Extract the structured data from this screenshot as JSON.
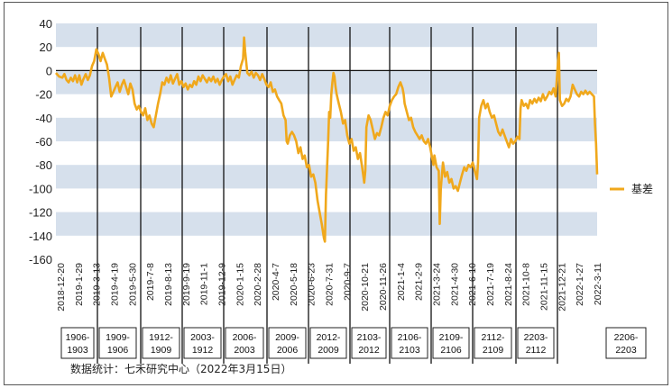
{
  "chart_data": {
    "type": "line",
    "title": "",
    "xlabel": "",
    "ylabel": "",
    "ylim": [
      -160,
      40
    ],
    "yticks": [
      40,
      20,
      0,
      -20,
      -40,
      -60,
      -80,
      -100,
      -120,
      -140,
      -160
    ],
    "ytick_labels": [
      "40",
      "20",
      "0",
      "-20",
      "-40",
      "-60",
      "-80",
      "-100",
      "-120",
      "-140",
      "-160"
    ],
    "x_tick_labels": [
      "2018-12-20",
      "2019-1-29",
      "2019-3-13",
      "2019-4-19",
      "2019-5-30",
      "2019-7-8",
      "2019-8-13",
      "2019-9-19",
      "2019-11-1",
      "2019-12-9",
      "2020-1-15",
      "2020-2-28",
      "2020-4-7",
      "2020-5-18",
      "2020-6-23",
      "2020-7-31",
      "2020-9-7",
      "2020-10-21",
      "2020-11-26",
      "2021-1-4",
      "2021-2-9",
      "2021-3-24",
      "2021-4-30",
      "2021-6-10",
      "2021-7-19",
      "2021-8-24",
      "2021-10-8",
      "2021-11-15",
      "2021-12-21",
      "2022-1-27",
      "2022-3-11"
    ],
    "contract_labels": [
      {
        "line1": "1906-",
        "line2": "1903"
      },
      {
        "line1": "1909-",
        "line2": "1906"
      },
      {
        "line1": "1912-",
        "line2": "1909"
      },
      {
        "line1": "2003-",
        "line2": "1912"
      },
      {
        "line1": "2006-",
        "line2": "2003"
      },
      {
        "line1": "2009-",
        "line2": "2006"
      },
      {
        "line1": "2012-",
        "line2": "2009"
      },
      {
        "line1": "2103-",
        "line2": "2012"
      },
      {
        "line1": "2106-",
        "line2": "2103"
      },
      {
        "line1": "2109-",
        "line2": "2106"
      },
      {
        "line1": "2112-",
        "line2": "2109"
      },
      {
        "line1": "2203-",
        "line2": "2112"
      },
      {
        "line1": "2206-",
        "line2": "2203"
      }
    ],
    "series": [
      {
        "name": "基差",
        "color": "#f0a81c",
        "values": [
          [
            0,
            -2
          ],
          [
            3,
            -5
          ],
          [
            6,
            -6
          ],
          [
            8,
            -3
          ],
          [
            10,
            -8
          ],
          [
            12,
            -10
          ],
          [
            14,
            -6
          ],
          [
            16,
            -9
          ],
          [
            18,
            -4
          ],
          [
            20,
            -10
          ],
          [
            22,
            -4
          ],
          [
            24,
            -12
          ],
          [
            26,
            -7
          ],
          [
            28,
            -3
          ],
          [
            30,
            -8
          ],
          [
            32,
            -4
          ],
          [
            34,
            4
          ],
          [
            36,
            8
          ],
          [
            38,
            18
          ],
          [
            40,
            14
          ],
          [
            42,
            8
          ],
          [
            44,
            15
          ],
          [
            46,
            10
          ],
          [
            48,
            5
          ],
          [
            50,
            -6
          ],
          [
            52,
            -22
          ],
          [
            54,
            -18
          ],
          [
            56,
            -14
          ],
          [
            58,
            -10
          ],
          [
            60,
            -18
          ],
          [
            62,
            -12
          ],
          [
            64,
            -8
          ],
          [
            66,
            -14
          ],
          [
            68,
            -20
          ],
          [
            70,
            -11
          ],
          [
            72,
            -16
          ],
          [
            74,
            -28
          ],
          [
            76,
            -33
          ],
          [
            78,
            -30
          ],
          [
            80,
            -35
          ],
          [
            82,
            -38
          ],
          [
            84,
            -32
          ],
          [
            86,
            -42
          ],
          [
            88,
            -38
          ],
          [
            90,
            -45
          ],
          [
            92,
            -48
          ],
          [
            94,
            -38
          ],
          [
            96,
            -28
          ],
          [
            98,
            -20
          ],
          [
            100,
            -10
          ],
          [
            102,
            -12
          ],
          [
            104,
            -6
          ],
          [
            106,
            -10
          ],
          [
            108,
            -4
          ],
          [
            110,
            -11
          ],
          [
            112,
            -7
          ],
          [
            114,
            -3
          ],
          [
            116,
            -12
          ],
          [
            118,
            -9
          ],
          [
            120,
            -14
          ],
          [
            122,
            -11
          ],
          [
            124,
            -16
          ],
          [
            126,
            -12
          ],
          [
            128,
            -14
          ],
          [
            130,
            -9
          ],
          [
            132,
            -12
          ],
          [
            134,
            -5
          ],
          [
            136,
            -9
          ],
          [
            138,
            -4
          ],
          [
            140,
            -7
          ],
          [
            142,
            -10
          ],
          [
            144,
            -6
          ],
          [
            146,
            -9
          ],
          [
            148,
            -5
          ],
          [
            150,
            -10
          ],
          [
            152,
            -7
          ],
          [
            154,
            -12
          ],
          [
            156,
            -8
          ],
          [
            158,
            -5
          ],
          [
            160,
            -3
          ],
          [
            162,
            -9
          ],
          [
            164,
            -5
          ],
          [
            166,
            -12
          ],
          [
            168,
            -8
          ],
          [
            170,
            -4
          ],
          [
            172,
            -6
          ],
          [
            174,
            4
          ],
          [
            176,
            10
          ],
          [
            177,
            28
          ],
          [
            178,
            16
          ],
          [
            180,
            -2
          ],
          [
            182,
            -4
          ],
          [
            184,
            -1
          ],
          [
            186,
            -6
          ],
          [
            188,
            -2
          ],
          [
            190,
            -4
          ],
          [
            192,
            -8
          ],
          [
            194,
            -3
          ],
          [
            196,
            -7
          ],
          [
            198,
            -12
          ],
          [
            200,
            -14
          ],
          [
            202,
            -10
          ],
          [
            204,
            -18
          ],
          [
            206,
            -16
          ],
          [
            208,
            -22
          ],
          [
            210,
            -25
          ],
          [
            212,
            -28
          ],
          [
            214,
            -38
          ],
          [
            216,
            -42
          ],
          [
            217,
            -60
          ],
          [
            218,
            -62
          ],
          [
            220,
            -55
          ],
          [
            222,
            -52
          ],
          [
            224,
            -55
          ],
          [
            226,
            -60
          ],
          [
            228,
            -70
          ],
          [
            230,
            -65
          ],
          [
            232,
            -75
          ],
          [
            234,
            -72
          ],
          [
            236,
            -82
          ],
          [
            238,
            -80
          ],
          [
            240,
            -90
          ],
          [
            242,
            -88
          ],
          [
            244,
            -95
          ],
          [
            246,
            -110
          ],
          [
            248,
            -120
          ],
          [
            250,
            -130
          ],
          [
            252,
            -142
          ],
          [
            253,
            -145
          ],
          [
            254,
            -105
          ],
          [
            256,
            -60
          ],
          [
            257,
            -35
          ],
          [
            258,
            -40
          ],
          [
            259,
            -20
          ],
          [
            260,
            -10
          ],
          [
            261,
            -2
          ],
          [
            262,
            -5
          ],
          [
            263,
            -14
          ],
          [
            264,
            -20
          ],
          [
            266,
            -28
          ],
          [
            268,
            -35
          ],
          [
            270,
            -45
          ],
          [
            272,
            -42
          ],
          [
            274,
            -55
          ],
          [
            276,
            -62
          ],
          [
            278,
            -58
          ],
          [
            280,
            -68
          ],
          [
            282,
            -65
          ],
          [
            284,
            -75
          ],
          [
            286,
            -70
          ],
          [
            288,
            -82
          ],
          [
            290,
            -95
          ],
          [
            291,
            -85
          ],
          [
            292,
            -48
          ],
          [
            294,
            -38
          ],
          [
            296,
            -42
          ],
          [
            298,
            -50
          ],
          [
            300,
            -58
          ],
          [
            302,
            -53
          ],
          [
            304,
            -55
          ],
          [
            306,
            -48
          ],
          [
            308,
            -40
          ],
          [
            310,
            -35
          ],
          [
            312,
            -38
          ],
          [
            314,
            -30
          ],
          [
            316,
            -25
          ],
          [
            318,
            -22
          ],
          [
            320,
            -20
          ],
          [
            322,
            -14
          ],
          [
            324,
            -10
          ],
          [
            326,
            -15
          ],
          [
            327,
            -20
          ],
          [
            328,
            -28
          ],
          [
            330,
            -35
          ],
          [
            332,
            -42
          ],
          [
            334,
            -40
          ],
          [
            336,
            -48
          ],
          [
            338,
            -52
          ],
          [
            340,
            -55
          ],
          [
            342,
            -58
          ],
          [
            344,
            -55
          ],
          [
            346,
            -60
          ],
          [
            348,
            -62
          ],
          [
            350,
            -58
          ],
          [
            352,
            -65
          ],
          [
            354,
            -75
          ],
          [
            355,
            -80
          ],
          [
            356,
            -72
          ],
          [
            358,
            -82
          ],
          [
            360,
            -85
          ],
          [
            361,
            -130
          ],
          [
            362,
            -100
          ],
          [
            364,
            -78
          ],
          [
            366,
            -90
          ],
          [
            368,
            -86
          ],
          [
            370,
            -95
          ],
          [
            372,
            -92
          ],
          [
            374,
            -100
          ],
          [
            376,
            -98
          ],
          [
            378,
            -102
          ],
          [
            380,
            -95
          ],
          [
            382,
            -88
          ],
          [
            384,
            -82
          ],
          [
            386,
            -85
          ],
          [
            388,
            -80
          ],
          [
            390,
            -82
          ],
          [
            392,
            -78
          ],
          [
            394,
            -85
          ],
          [
            396,
            -92
          ],
          [
            397,
            -78
          ],
          [
            398,
            -40
          ],
          [
            400,
            -30
          ],
          [
            402,
            -25
          ],
          [
            404,
            -32
          ],
          [
            406,
            -28
          ],
          [
            408,
            -35
          ],
          [
            410,
            -40
          ],
          [
            412,
            -38
          ],
          [
            414,
            -45
          ],
          [
            416,
            -52
          ],
          [
            418,
            -55
          ],
          [
            420,
            -50
          ],
          [
            422,
            -55
          ],
          [
            424,
            -60
          ],
          [
            426,
            -65
          ],
          [
            428,
            -58
          ],
          [
            430,
            -62
          ],
          [
            432,
            -60
          ],
          [
            434,
            -56
          ],
          [
            436,
            -58
          ],
          [
            437,
            -32
          ],
          [
            438,
            -25
          ],
          [
            440,
            -30
          ],
          [
            442,
            -28
          ],
          [
            444,
            -32
          ],
          [
            446,
            -25
          ],
          [
            448,
            -28
          ],
          [
            450,
            -24
          ],
          [
            452,
            -27
          ],
          [
            454,
            -23
          ],
          [
            456,
            -26
          ],
          [
            458,
            -20
          ],
          [
            460,
            -25
          ],
          [
            462,
            -22
          ],
          [
            464,
            -18
          ],
          [
            466,
            -20
          ],
          [
            468,
            -15
          ],
          [
            470,
            -22
          ],
          [
            472,
            5
          ],
          [
            473,
            15
          ],
          [
            474,
            -25
          ],
          [
            476,
            -30
          ],
          [
            478,
            -28
          ],
          [
            480,
            -24
          ],
          [
            482,
            -26
          ],
          [
            484,
            -22
          ],
          [
            486,
            -12
          ],
          [
            488,
            -16
          ],
          [
            490,
            -20
          ],
          [
            492,
            -22
          ],
          [
            494,
            -18
          ],
          [
            496,
            -20
          ],
          [
            498,
            -17
          ],
          [
            500,
            -20
          ],
          [
            502,
            -18
          ],
          [
            504,
            -20
          ],
          [
            506,
            -22
          ],
          [
            507,
            -45
          ],
          [
            508,
            -62
          ],
          [
            509,
            -88
          ]
        ]
      }
    ],
    "x_domain": [
      0,
      509
    ],
    "grid": "alternating horizontal bands",
    "legend_position": "right"
  },
  "legend": {
    "label": "基差"
  },
  "source_note": "数据统计：七禾研究中心（2022年3月15日）",
  "colors": {
    "band": "#d6e0ec",
    "line": "#f0a81c",
    "divider": "#111111"
  }
}
